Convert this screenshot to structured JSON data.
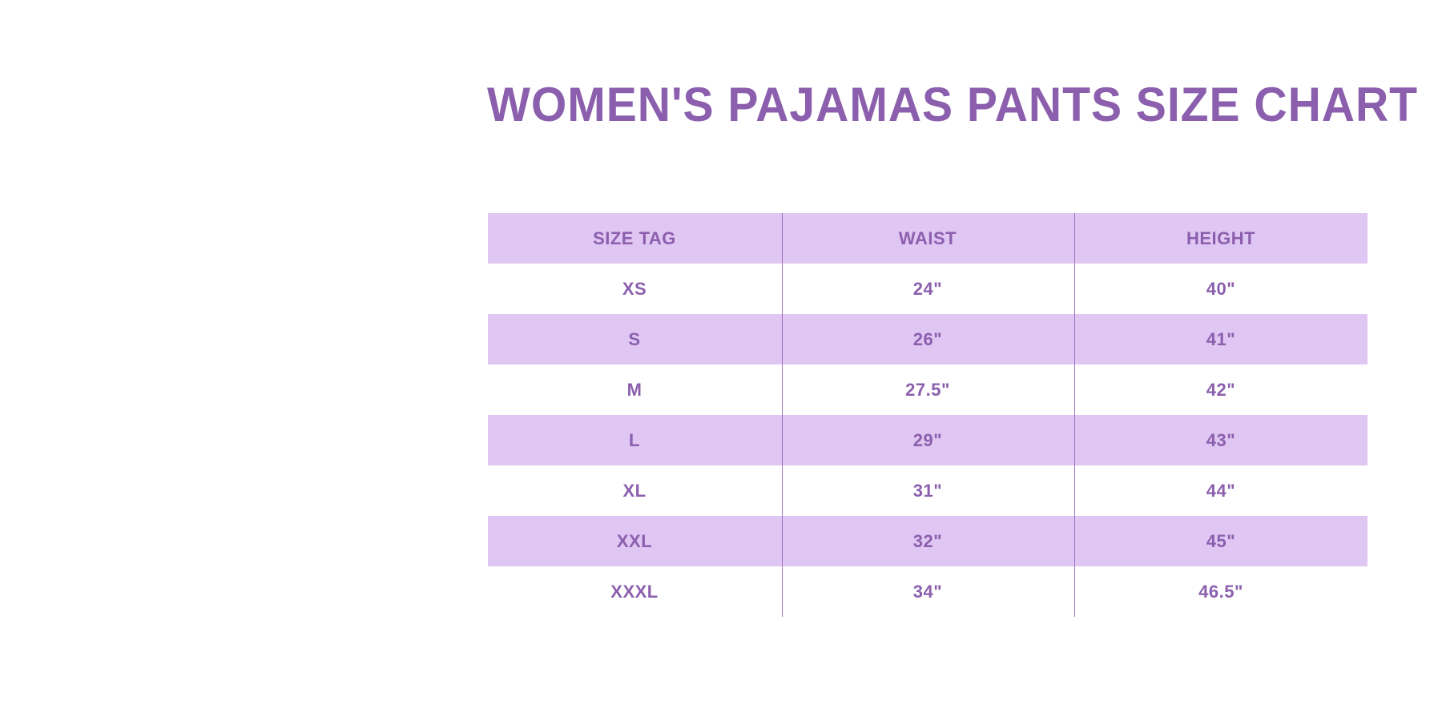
{
  "title": "WOMEN'S PAJAMAS PANTS SIZE CHART",
  "colors": {
    "text": "#8b5fad",
    "row_shade": "#e0c6f3",
    "background": "#ffffff"
  },
  "table": {
    "headers": [
      "SIZE TAG",
      "WAIST",
      "HEIGHT"
    ],
    "rows": [
      [
        "XS",
        "24\"",
        "40\""
      ],
      [
        "S",
        "26\"",
        "41\""
      ],
      [
        "M",
        "27.5\"",
        "42\""
      ],
      [
        "L",
        "29\"",
        "43\""
      ],
      [
        "XL",
        "31\"",
        "44\""
      ],
      [
        "XXL",
        "32\"",
        "45\""
      ],
      [
        "XXXL",
        "34\"",
        "46.5\""
      ]
    ]
  }
}
